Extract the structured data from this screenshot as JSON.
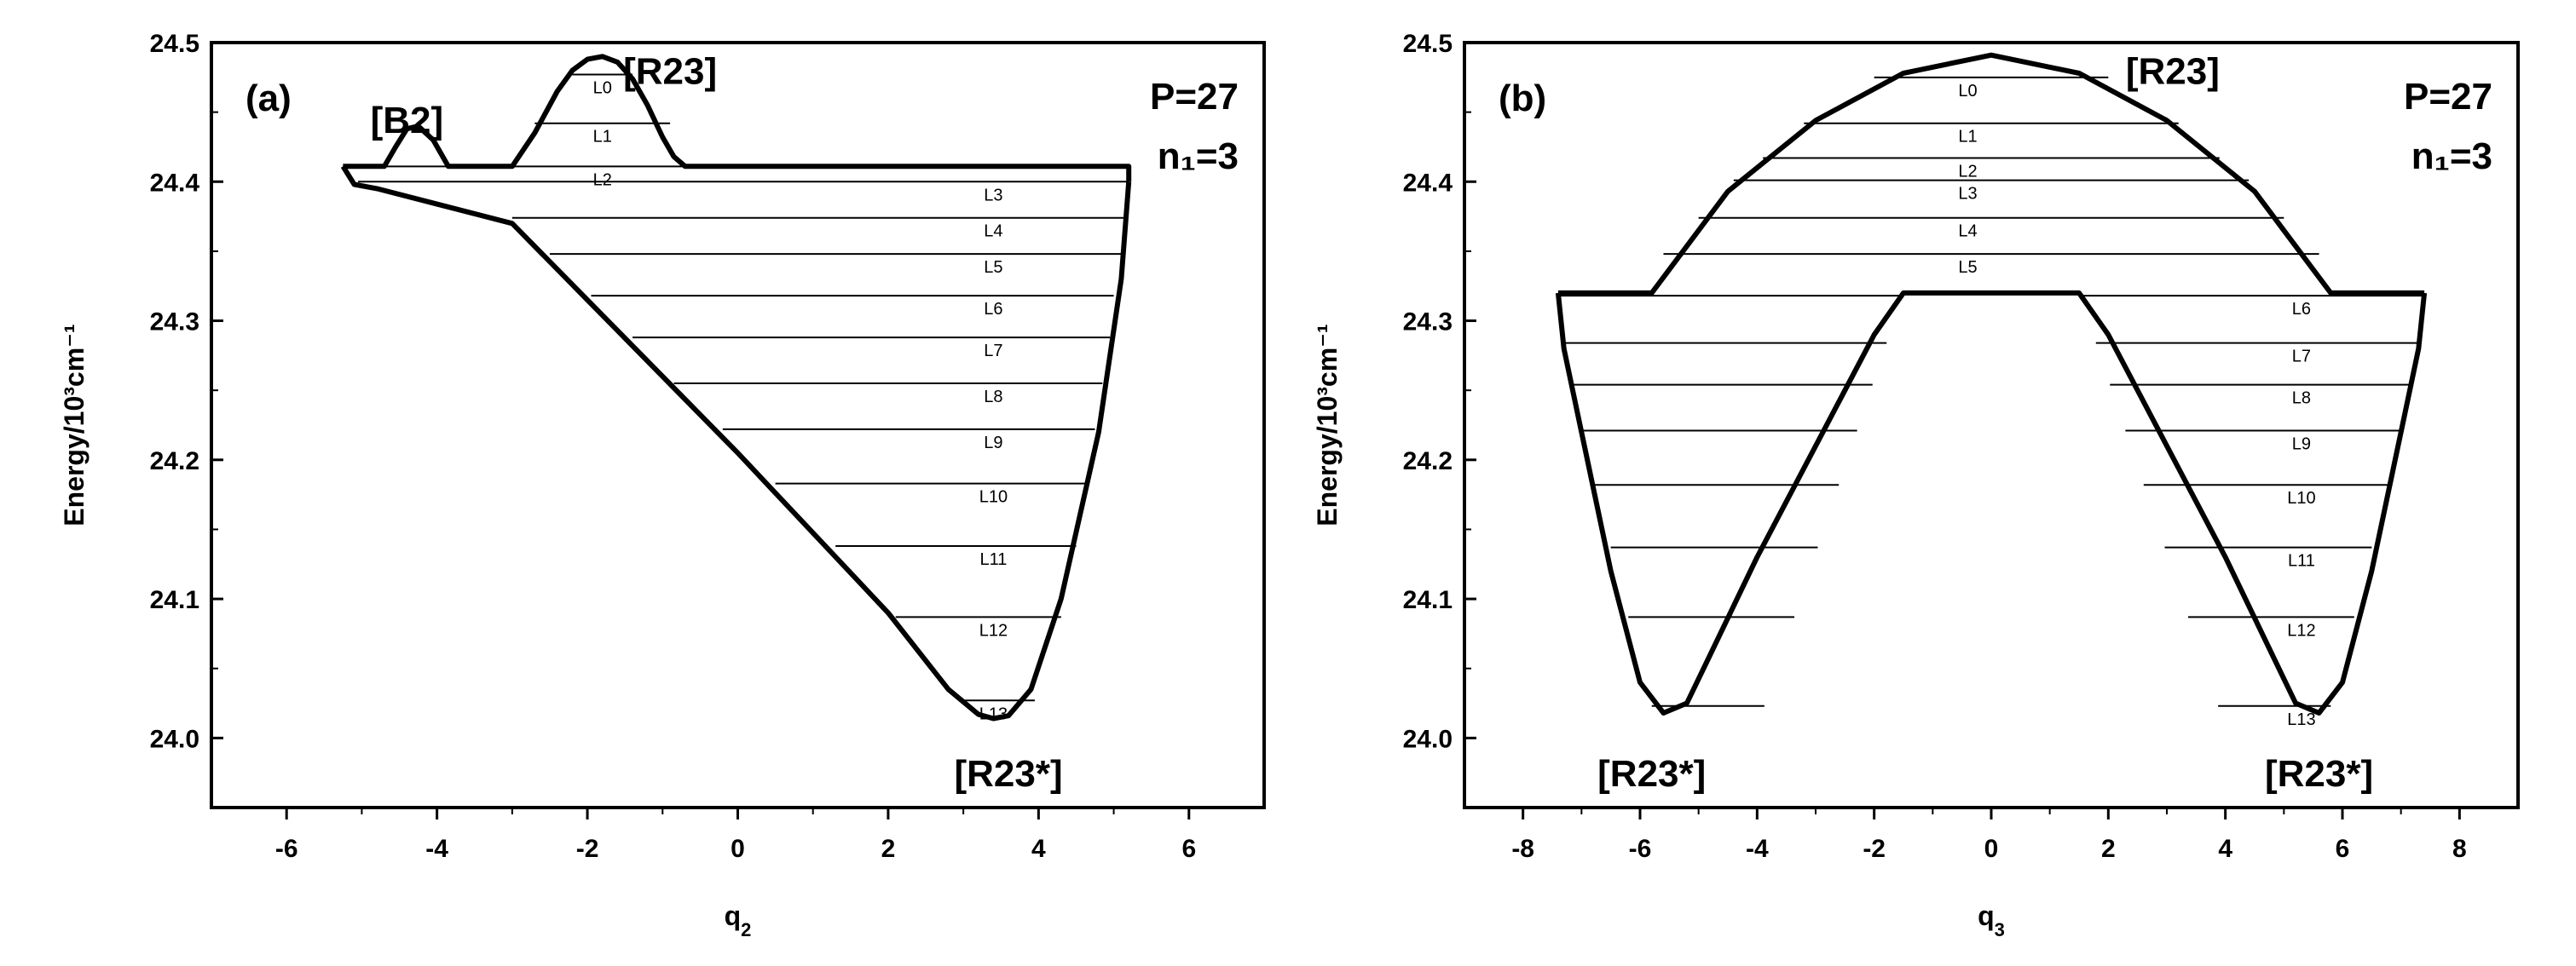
{
  "chart_data": [
    {
      "type": "line",
      "panel_label": "(a)",
      "xlabel": "q",
      "xlabel_sub": "2",
      "ylabel": "Energy/10³cm⁻¹",
      "xlim": [
        -7,
        7
      ],
      "ylim": [
        23.95,
        24.5
      ],
      "xticks": [
        -6,
        -4,
        -2,
        0,
        2,
        4,
        6
      ],
      "xtick_labels": [
        "-6",
        "-4",
        "-2",
        "0",
        "2",
        "4",
        "6"
      ],
      "yticks": [
        24.0,
        24.1,
        24.2,
        24.3,
        24.4,
        24.5
      ],
      "ytick_labels": [
        "24.0",
        "24.1",
        "24.2",
        "24.3",
        "24.4",
        "24.5"
      ],
      "corner_text": [
        "P=27",
        "n₁=3"
      ],
      "state_labels": [
        {
          "text": "[B2]",
          "x": -4.4,
          "y": 24.445
        },
        {
          "text": "[R23]",
          "x": -0.9,
          "y": 24.48
        },
        {
          "text": "[R23*]",
          "x": 3.6,
          "y": 23.975
        }
      ],
      "curve": {
        "name": "upper",
        "x": [
          -5.25,
          -4.95,
          -4.7,
          -4.55,
          -4.4,
          -4.25,
          -4.05,
          -3.85,
          -3.6,
          -3.0,
          -2.7,
          -2.4,
          -2.2,
          -2.0,
          -1.8,
          -1.6,
          -1.4,
          -1.2,
          -1.0,
          -0.85,
          -0.7,
          -0.55,
          5.2,
          5.2
        ],
        "y": [
          24.411,
          24.411,
          24.411,
          24.425,
          24.438,
          24.44,
          24.43,
          24.411,
          24.411,
          24.411,
          24.435,
          24.465,
          24.48,
          24.488,
          24.49,
          24.486,
          24.474,
          24.455,
          24.432,
          24.418,
          24.411,
          24.411,
          24.411,
          24.4
        ]
      },
      "curve2": {
        "name": "lower",
        "x": [
          -5.25,
          -5.1,
          -4.8,
          -3.0,
          -2.0,
          0.0,
          2.0,
          2.8,
          3.2,
          3.4,
          3.6,
          3.9,
          4.3,
          4.8,
          5.1,
          5.2
        ],
        "y": [
          24.411,
          24.398,
          24.395,
          24.37,
          24.315,
          24.205,
          24.09,
          24.035,
          24.017,
          24.014,
          24.016,
          24.035,
          24.1,
          24.22,
          24.33,
          24.4
        ]
      },
      "levels": [
        {
          "label": "L0",
          "y": 24.477,
          "x0": -2.2,
          "x1": -1.4,
          "lx": -1.8
        },
        {
          "label": "L1",
          "y": 24.442,
          "x0": -2.7,
          "x1": -0.9,
          "lx": -1.8
        },
        {
          "label": "L2",
          "y": 24.411,
          "x0": -5.25,
          "x1": 5.2,
          "lx": -1.8
        },
        {
          "label": "L3",
          "y": 24.4,
          "x0": -5.05,
          "x1": 5.2,
          "lx": 3.4
        },
        {
          "label": "L4",
          "y": 24.374,
          "x0": -3.0,
          "x1": 5.15,
          "lx": 3.4
        },
        {
          "label": "L5",
          "y": 24.348,
          "x0": -2.5,
          "x1": 5.1,
          "lx": 3.4
        },
        {
          "label": "L6",
          "y": 24.318,
          "x0": -1.95,
          "x1": 5.0,
          "lx": 3.4
        },
        {
          "label": "L7",
          "y": 24.288,
          "x0": -1.4,
          "x1": 4.95,
          "lx": 3.4
        },
        {
          "label": "L8",
          "y": 24.255,
          "x0": -0.85,
          "x1": 4.85,
          "lx": 3.4
        },
        {
          "label": "L9",
          "y": 24.222,
          "x0": -0.2,
          "x1": 4.75,
          "lx": 3.4
        },
        {
          "label": "L10",
          "y": 24.183,
          "x0": 0.5,
          "x1": 4.65,
          "lx": 3.4
        },
        {
          "label": "L11",
          "y": 24.138,
          "x0": 1.3,
          "x1": 4.5,
          "lx": 3.4
        },
        {
          "label": "L12",
          "y": 24.087,
          "x0": 2.1,
          "x1": 4.3,
          "lx": 3.4
        },
        {
          "label": "L13",
          "y": 24.027,
          "x0": 3.0,
          "x1": 3.95,
          "lx": 3.4
        }
      ]
    },
    {
      "type": "line",
      "panel_label": "(b)",
      "xlabel": "q",
      "xlabel_sub": "3",
      "ylabel": "Energy/10³cm⁻¹",
      "xlim": [
        -9,
        9
      ],
      "ylim": [
        23.95,
        24.5
      ],
      "xticks": [
        -8,
        -6,
        -4,
        -2,
        0,
        2,
        4,
        6,
        8
      ],
      "xtick_labels": [
        "-8",
        "-6",
        "-4",
        "-2",
        "0",
        "2",
        "4",
        "6",
        "8"
      ],
      "yticks": [
        24.0,
        24.1,
        24.2,
        24.3,
        24.4,
        24.5
      ],
      "ytick_labels": [
        "24.0",
        "24.1",
        "24.2",
        "24.3",
        "24.4",
        "24.5"
      ],
      "corner_text": [
        "P=27",
        "n₁=3"
      ],
      "state_labels": [
        {
          "text": "[R23]",
          "x": 3.1,
          "y": 24.48
        },
        {
          "text": "[R23*]",
          "x": -5.8,
          "y": 23.975
        },
        {
          "text": "[R23*]",
          "x": 5.6,
          "y": 23.975
        }
      ],
      "curve": {
        "name": "upper",
        "x": [
          -7.4,
          -5.8,
          -4.5,
          -3.0,
          -1.5,
          0.0,
          1.5,
          3.0,
          4.5,
          5.8,
          7.4
        ],
        "y": [
          24.32,
          24.32,
          24.393,
          24.444,
          24.478,
          24.491,
          24.478,
          24.444,
          24.393,
          24.32,
          24.32
        ]
      },
      "curve2": {
        "name": "lower",
        "x": [
          -7.4,
          -7.3,
          -7.0,
          -6.5,
          -6.0,
          -5.6,
          -5.2,
          -4.8,
          -4.0,
          -3.0,
          -2.0,
          -1.5,
          1.5,
          2.0,
          3.0,
          4.0,
          4.8,
          5.2,
          5.6,
          6.0,
          6.5,
          7.0,
          7.3,
          7.4
        ],
        "y": [
          24.32,
          24.28,
          24.22,
          24.12,
          24.04,
          24.018,
          24.025,
          24.06,
          24.13,
          24.21,
          24.29,
          24.32,
          24.32,
          24.29,
          24.21,
          24.13,
          24.06,
          24.025,
          24.018,
          24.04,
          24.12,
          24.22,
          24.28,
          24.32
        ]
      },
      "levels": [
        {
          "label": "L0",
          "y": 24.475,
          "x0": -2.0,
          "x1": 2.0,
          "lx": -0.4
        },
        {
          "label": "L1",
          "y": 24.442,
          "x0": -3.2,
          "x1": 3.2,
          "lx": -0.4
        },
        {
          "label": "L2",
          "y": 24.417,
          "x0": -3.9,
          "x1": 3.9,
          "lx": -0.4
        },
        {
          "label": "L3",
          "y": 24.401,
          "x0": -4.4,
          "x1": 4.4,
          "lx": -0.4
        },
        {
          "label": "L4",
          "y": 24.374,
          "x0": -5.0,
          "x1": 5.0,
          "lx": -0.4
        },
        {
          "label": "L5",
          "y": 24.348,
          "x0": -5.6,
          "x1": 5.6,
          "lx": -0.4
        },
        {
          "label": "L6",
          "y": 24.318,
          "x0": -7.4,
          "x1": 7.4,
          "lx": 5.3,
          "split": true
        },
        {
          "label": "L7",
          "y": 24.284,
          "x0": -7.3,
          "x1": 7.3,
          "lx": 5.3,
          "split": true
        },
        {
          "label": "L8",
          "y": 24.254,
          "x0": -7.2,
          "x1": 7.2,
          "lx": 5.3,
          "split": true
        },
        {
          "label": "L9",
          "y": 24.221,
          "x0": -7.0,
          "x1": 7.0,
          "lx": 5.3,
          "split": true
        },
        {
          "label": "L10",
          "y": 24.182,
          "x0": -6.8,
          "x1": 6.8,
          "lx": 5.3,
          "split": true
        },
        {
          "label": "L11",
          "y": 24.137,
          "x0": -6.5,
          "x1": 6.5,
          "lx": 5.3,
          "split": true
        },
        {
          "label": "L12",
          "y": 24.087,
          "x0": -6.2,
          "x1": 6.2,
          "lx": 5.3,
          "split": true
        },
        {
          "label": "L13",
          "y": 24.023,
          "x0": -5.8,
          "x1": 5.8,
          "lx": 5.3,
          "split": true
        }
      ]
    }
  ]
}
